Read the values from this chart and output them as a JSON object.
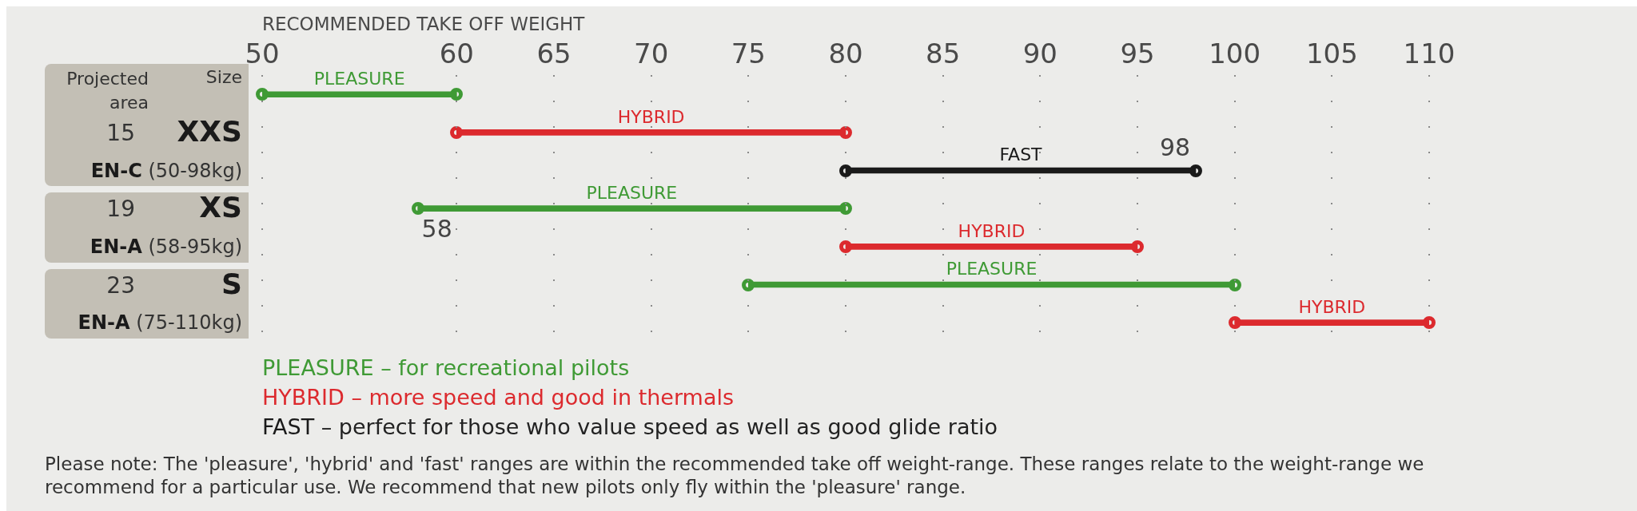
{
  "chart_data": {
    "type": "bar",
    "orientation": "horizontal",
    "xlabel": "RECOMMENDED TAKE OFF WEIGHT",
    "categories": [
      null,
      null,
      null,
      null,
      null,
      null,
      null
    ],
    "series": [
      {
        "name": "PLEASURE",
        "color": "#3f9a35",
        "base": [
          50,
          null,
          null,
          58,
          null,
          75,
          null
        ],
        "values": [
          10,
          null,
          null,
          22,
          null,
          25,
          null
        ]
      },
      {
        "name": "HYBRID",
        "color": "#dc2a2e",
        "base": [
          null,
          60,
          null,
          null,
          80,
          null,
          100
        ],
        "values": [
          null,
          20,
          null,
          null,
          15,
          null,
          10
        ]
      },
      {
        "name": "FAST",
        "color": "#1a1a1a",
        "base": [
          null,
          null,
          80,
          null,
          null,
          null,
          null
        ],
        "values": [
          null,
          null,
          18,
          null,
          null,
          null,
          null
        ]
      }
    ],
    "marker": "circle",
    "xlim": [
      50,
      110
    ],
    "xticks": [
      50,
      60,
      65,
      70,
      75,
      80,
      85,
      90,
      95,
      100,
      105,
      110
    ],
    "grid": "x",
    "legend": "bottom",
    "annotations": [
      "Projected area",
      "Size",
      "15",
      "XXS",
      "EN-C (50-98kg)",
      "19",
      "XS",
      "EN-A (58-95kg)",
      "23",
      "S",
      "EN-A (75-110kg)",
      "– for recreational pilots",
      "– more speed and good in thermals",
      "– perfect for those who value speed as well as good glide ratio",
      "Please note: The 'pleasure', 'hybrid' and 'fast' ranges are within the recommended take off weight-range. These ranges relate to the weight-range we recommend for a particular use. We recommend that new pilots only fly within the 'pleasure' range.",
      "98",
      "58"
    ]
  }
}
